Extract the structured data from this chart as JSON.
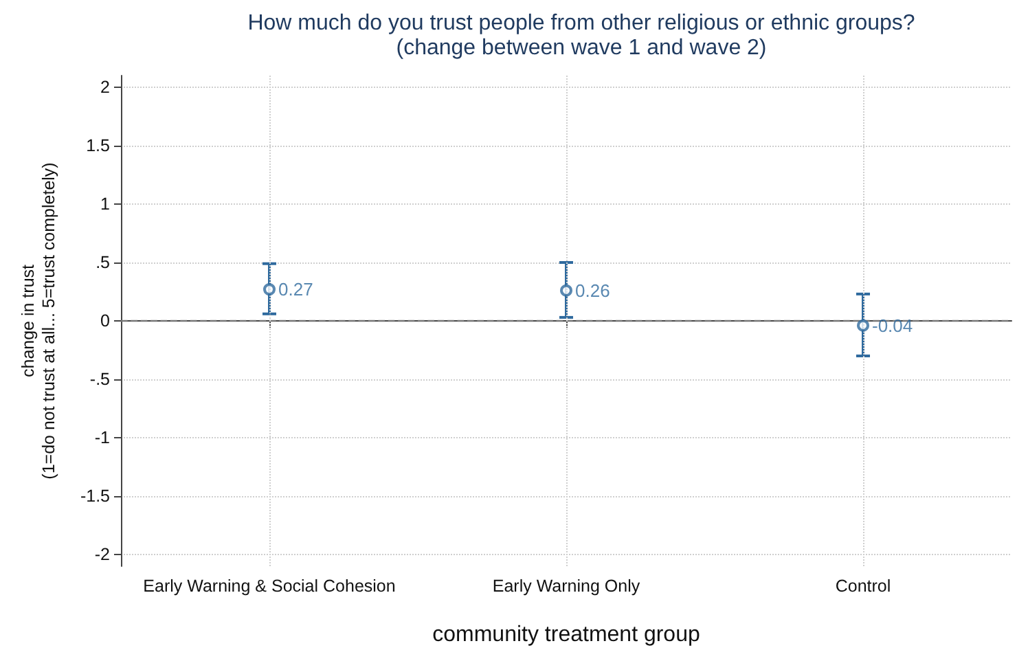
{
  "chart_data": {
    "type": "scatter",
    "title": "How much do you trust people from other religious or ethnic groups?",
    "subtitle": "(change between wave 1 and wave 2)",
    "xlabel": "community treatment group",
    "ylabel": "change in trust\n(1=do not trust at all... 5=trust completely)",
    "categories": [
      "Early Warning & Social Cohesion",
      "Early Warning Only",
      "Control"
    ],
    "values": [
      0.27,
      0.26,
      -0.04
    ],
    "color": "#2f6a9e",
    "errors": [
      [
        0.06,
        0.49
      ],
      [
        0.03,
        0.5
      ],
      [
        -0.3,
        0.23
      ]
    ],
    "data_labels": true,
    "marker": "circle",
    "grid": true,
    "ylim": [
      -2.1,
      2.1
    ],
    "yticks": [
      {
        "value": -2,
        "label": "-2"
      },
      {
        "value": -1.5,
        "label": "-1.5"
      },
      {
        "value": -1,
        "label": "-1"
      },
      {
        "value": -0.5,
        "label": "-.5"
      },
      {
        "value": 0,
        "label": "0"
      },
      {
        "value": 0.5,
        "label": ".5"
      },
      {
        "value": 1,
        "label": "1"
      },
      {
        "value": 1.5,
        "label": "1.5"
      },
      {
        "value": 2,
        "label": "2"
      }
    ],
    "ref_lines": [
      {
        "axis": "y",
        "value": 0,
        "color": "#777777",
        "line_style": "dashed"
      }
    ]
  }
}
